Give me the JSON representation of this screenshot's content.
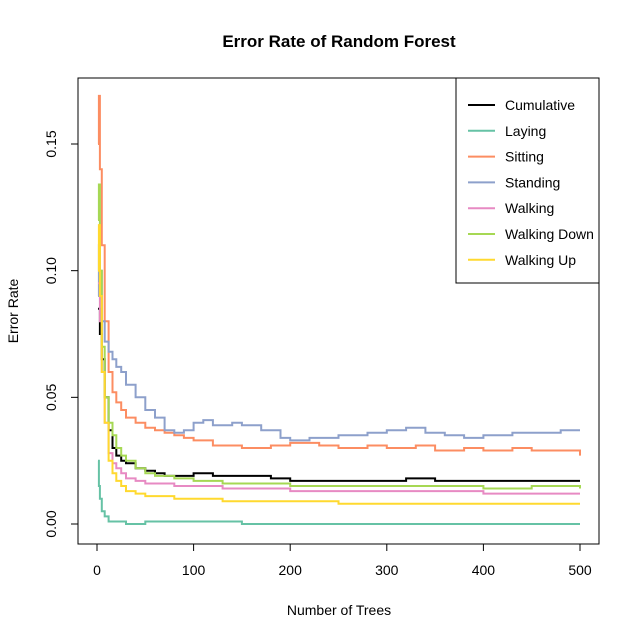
{
  "chart_data": {
    "type": "line",
    "title": "Error Rate of Random Forest",
    "xlabel": "Number of Trees",
    "ylabel": "Error Rate",
    "xlim": [
      0,
      500
    ],
    "ylim": [
      0,
      0.17
    ],
    "xticks": [
      {
        "value": 0,
        "label": "0"
      },
      {
        "value": 100,
        "label": "100"
      },
      {
        "value": 200,
        "label": "200"
      },
      {
        "value": 300,
        "label": "300"
      },
      {
        "value": 400,
        "label": "400"
      },
      {
        "value": 500,
        "label": "500"
      }
    ],
    "yticks": [
      {
        "value": 0.0,
        "label": "0.00"
      },
      {
        "value": 0.05,
        "label": "0.05"
      },
      {
        "value": 0.1,
        "label": "0.10"
      },
      {
        "value": 0.15,
        "label": "0.15"
      }
    ],
    "legend_position": "top-right",
    "grid": false,
    "series": [
      {
        "name": "Cumulative",
        "color": "#000000",
        "x": [
          1,
          3,
          5,
          8,
          12,
          16,
          20,
          25,
          30,
          40,
          50,
          60,
          70,
          80,
          90,
          100,
          120,
          150,
          180,
          200,
          250,
          300,
          320,
          350,
          400,
          450,
          500
        ],
        "y": [
          0.085,
          0.075,
          0.065,
          0.05,
          0.037,
          0.03,
          0.027,
          0.025,
          0.024,
          0.022,
          0.021,
          0.02,
          0.019,
          0.019,
          0.019,
          0.02,
          0.019,
          0.019,
          0.018,
          0.017,
          0.017,
          0.017,
          0.018,
          0.017,
          0.017,
          0.017,
          0.017
        ]
      },
      {
        "name": "Laying",
        "color": "#66C2A5",
        "x": [
          1,
          2,
          3,
          5,
          8,
          12,
          16,
          20,
          30,
          50,
          100,
          150,
          200,
          300,
          400,
          500
        ],
        "y": [
          0.025,
          0.015,
          0.01,
          0.005,
          0.003,
          0.001,
          0.001,
          0.001,
          0.0,
          0.001,
          0.001,
          0.0,
          0.0,
          0.0,
          0.0,
          0.0
        ]
      },
      {
        "name": "Sitting",
        "color": "#FC8D62",
        "x": [
          1,
          2,
          3,
          5,
          8,
          12,
          16,
          20,
          25,
          30,
          40,
          50,
          60,
          70,
          80,
          90,
          100,
          120,
          150,
          180,
          200,
          230,
          250,
          280,
          300,
          330,
          350,
          380,
          400,
          430,
          450,
          480,
          500
        ],
        "y": [
          0.15,
          0.169,
          0.14,
          0.11,
          0.08,
          0.06,
          0.052,
          0.048,
          0.045,
          0.042,
          0.04,
          0.038,
          0.037,
          0.036,
          0.035,
          0.034,
          0.033,
          0.031,
          0.03,
          0.031,
          0.032,
          0.031,
          0.03,
          0.031,
          0.03,
          0.031,
          0.029,
          0.03,
          0.029,
          0.03,
          0.029,
          0.029,
          0.027
        ]
      },
      {
        "name": "Standing",
        "color": "#8DA0CB",
        "x": [
          1,
          2,
          3,
          5,
          8,
          12,
          16,
          20,
          25,
          30,
          40,
          50,
          60,
          70,
          80,
          90,
          100,
          110,
          120,
          140,
          150,
          170,
          190,
          200,
          220,
          250,
          280,
          300,
          320,
          340,
          360,
          380,
          400,
          430,
          450,
          480,
          500
        ],
        "y": [
          0.09,
          0.11,
          0.1,
          0.08,
          0.072,
          0.068,
          0.065,
          0.062,
          0.06,
          0.055,
          0.05,
          0.045,
          0.042,
          0.037,
          0.036,
          0.037,
          0.04,
          0.041,
          0.039,
          0.04,
          0.039,
          0.037,
          0.034,
          0.033,
          0.034,
          0.035,
          0.036,
          0.037,
          0.038,
          0.036,
          0.035,
          0.034,
          0.035,
          0.036,
          0.036,
          0.037,
          0.037
        ]
      },
      {
        "name": "Walking",
        "color": "#E78AC3",
        "x": [
          1,
          3,
          5,
          8,
          12,
          16,
          20,
          25,
          30,
          40,
          50,
          60,
          80,
          100,
          130,
          160,
          200,
          250,
          300,
          350,
          400,
          450,
          500
        ],
        "y": [
          0.095,
          0.08,
          0.06,
          0.04,
          0.028,
          0.024,
          0.022,
          0.02,
          0.018,
          0.017,
          0.016,
          0.016,
          0.015,
          0.015,
          0.014,
          0.014,
          0.013,
          0.013,
          0.013,
          0.013,
          0.012,
          0.012,
          0.012
        ]
      },
      {
        "name": "Walking Down",
        "color": "#A6D854",
        "x": [
          1,
          2,
          3,
          5,
          8,
          12,
          16,
          20,
          25,
          30,
          40,
          50,
          60,
          80,
          100,
          130,
          160,
          200,
          250,
          300,
          350,
          400,
          450,
          500
        ],
        "y": [
          0.12,
          0.134,
          0.1,
          0.07,
          0.05,
          0.04,
          0.035,
          0.03,
          0.027,
          0.025,
          0.022,
          0.02,
          0.019,
          0.018,
          0.017,
          0.016,
          0.016,
          0.015,
          0.015,
          0.015,
          0.015,
          0.014,
          0.015,
          0.014
        ]
      },
      {
        "name": "Walking Up",
        "color": "#FFD92F",
        "x": [
          1,
          2,
          3,
          5,
          8,
          12,
          16,
          20,
          25,
          30,
          40,
          50,
          60,
          80,
          100,
          130,
          160,
          200,
          250,
          300,
          350,
          400,
          450,
          500
        ],
        "y": [
          0.1,
          0.118,
          0.09,
          0.06,
          0.04,
          0.025,
          0.02,
          0.017,
          0.015,
          0.013,
          0.012,
          0.011,
          0.011,
          0.01,
          0.01,
          0.009,
          0.009,
          0.009,
          0.008,
          0.008,
          0.008,
          0.008,
          0.008,
          0.008
        ]
      }
    ]
  }
}
